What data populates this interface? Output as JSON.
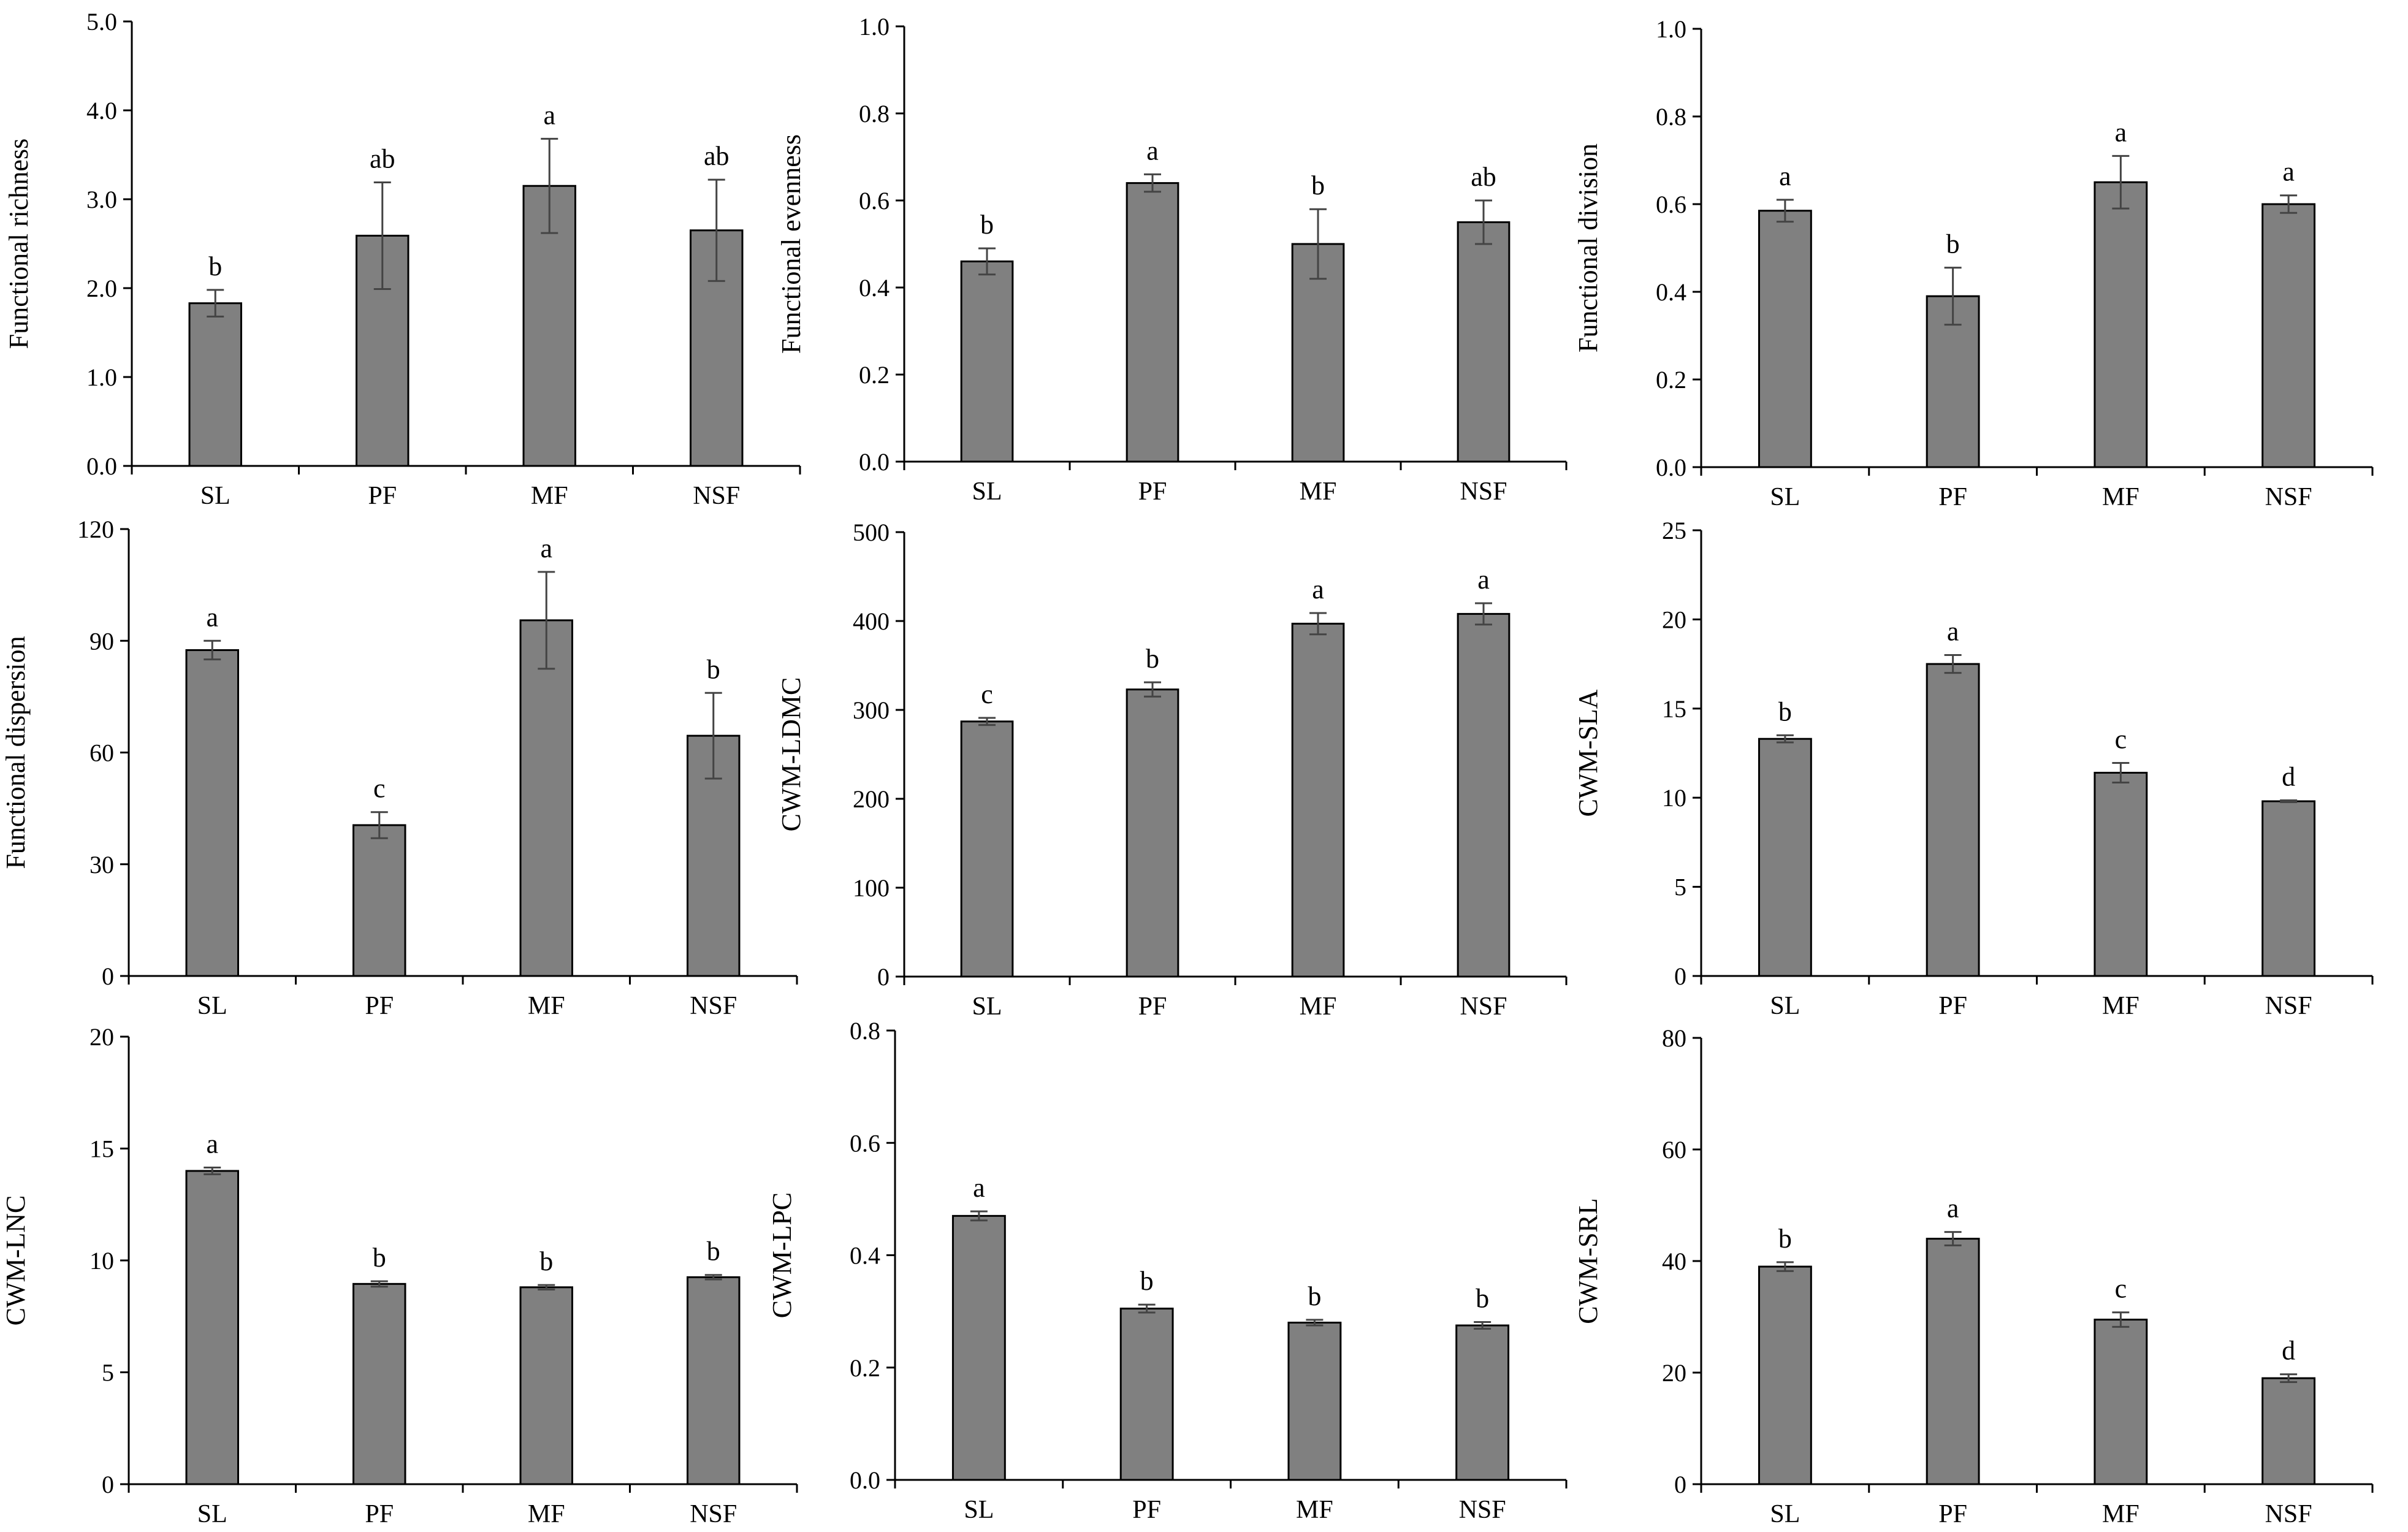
{
  "colors": {
    "bar": "#808080",
    "bar_stroke": "#000000",
    "axis": "#000000",
    "error_bar": "#444444"
  },
  "chart_data": [
    {
      "type": "bar",
      "ylabel": "Functional richness",
      "categories": [
        "SL",
        "PF",
        "MF",
        "NSF"
      ],
      "values": [
        1.83,
        2.59,
        3.15,
        2.65
      ],
      "errors": [
        0.15,
        0.6,
        0.53,
        0.57
      ],
      "letters": [
        "b",
        "ab",
        "a",
        "ab"
      ],
      "ylim": [
        0,
        5
      ],
      "yticks": [
        0,
        1,
        2,
        3,
        4,
        5
      ],
      "ytick_labels": [
        "0.0",
        "1.0",
        "2.0",
        "3.0",
        "4.0",
        "5.0"
      ]
    },
    {
      "type": "bar",
      "ylabel": "Functional evenness",
      "categories": [
        "SL",
        "PF",
        "MF",
        "NSF"
      ],
      "values": [
        0.46,
        0.64,
        0.5,
        0.55
      ],
      "errors": [
        0.03,
        0.02,
        0.08,
        0.05
      ],
      "letters": [
        "b",
        "a",
        "b",
        "ab"
      ],
      "ylim": [
        0,
        1
      ],
      "yticks": [
        0,
        0.2,
        0.4,
        0.6,
        0.8,
        1.0
      ],
      "ytick_labels": [
        "0.0",
        "0.2",
        "0.4",
        "0.6",
        "0.8",
        "1.0"
      ]
    },
    {
      "type": "bar",
      "ylabel": "Functional division",
      "categories": [
        "SL",
        "PF",
        "MF",
        "NSF"
      ],
      "values": [
        0.585,
        0.39,
        0.65,
        0.6
      ],
      "errors": [
        0.025,
        0.065,
        0.06,
        0.02
      ],
      "letters": [
        "a",
        "b",
        "a",
        "a"
      ],
      "ylim": [
        0,
        1
      ],
      "yticks": [
        0,
        0.2,
        0.4,
        0.6,
        0.8,
        1.0
      ],
      "ytick_labels": [
        "0.0",
        "0.2",
        "0.4",
        "0.6",
        "0.8",
        "1.0"
      ]
    },
    {
      "type": "bar",
      "ylabel": "Functional dispersion",
      "categories": [
        "SL",
        "PF",
        "MF",
        "NSF"
      ],
      "values": [
        87.5,
        40.5,
        95.5,
        64.5
      ],
      "errors": [
        2.5,
        3.5,
        13.0,
        11.5
      ],
      "letters": [
        "a",
        "c",
        "a",
        "b"
      ],
      "ylim": [
        0,
        120
      ],
      "yticks": [
        0,
        30,
        60,
        90,
        120
      ],
      "ytick_labels": [
        "0",
        "30",
        "60",
        "90",
        "120"
      ]
    },
    {
      "type": "bar",
      "ylabel": "CWM-LDMC",
      "categories": [
        "SL",
        "PF",
        "MF",
        "NSF"
      ],
      "values": [
        287,
        323,
        397,
        408
      ],
      "errors": [
        4,
        8,
        12,
        12
      ],
      "letters": [
        "c",
        "b",
        "a",
        "a"
      ],
      "ylim": [
        0,
        500
      ],
      "yticks": [
        0,
        100,
        200,
        300,
        400,
        500
      ],
      "ytick_labels": [
        "0",
        "100",
        "200",
        "300",
        "400",
        "500"
      ]
    },
    {
      "type": "bar",
      "ylabel": "CWM-SLA",
      "categories": [
        "SL",
        "PF",
        "MF",
        "NSF"
      ],
      "values": [
        13.3,
        17.5,
        11.4,
        9.8
      ],
      "errors": [
        0.2,
        0.5,
        0.55,
        0.05
      ],
      "letters": [
        "b",
        "a",
        "c",
        "d"
      ],
      "ylim": [
        0,
        25
      ],
      "yticks": [
        0,
        5,
        10,
        15,
        20,
        25
      ],
      "ytick_labels": [
        "0",
        "5",
        "10",
        "15",
        "20",
        "25"
      ]
    },
    {
      "type": "bar",
      "ylabel": "CWM-LNC",
      "categories": [
        "SL",
        "PF",
        "MF",
        "NSF"
      ],
      "values": [
        14.0,
        8.95,
        8.8,
        9.25
      ],
      "errors": [
        0.15,
        0.12,
        0.1,
        0.1
      ],
      "letters": [
        "a",
        "b",
        "b",
        "b"
      ],
      "ylim": [
        0,
        20
      ],
      "yticks": [
        0,
        5,
        10,
        15,
        20
      ],
      "ytick_labels": [
        "0",
        "5",
        "10",
        "15",
        "20"
      ]
    },
    {
      "type": "bar",
      "ylabel": "CWM-LPC",
      "categories": [
        "SL",
        "PF",
        "MF",
        "NSF"
      ],
      "values": [
        0.47,
        0.305,
        0.28,
        0.275
      ],
      "errors": [
        0.008,
        0.007,
        0.005,
        0.006
      ],
      "letters": [
        "a",
        "b",
        "b",
        "b"
      ],
      "ylim": [
        0,
        0.8
      ],
      "yticks": [
        0,
        0.2,
        0.4,
        0.6,
        0.8
      ],
      "ytick_labels": [
        "0.0",
        "0.2",
        "0.4",
        "0.6",
        "0.8"
      ]
    },
    {
      "type": "bar",
      "ylabel": "CWM-SRL",
      "categories": [
        "SL",
        "PF",
        "MF",
        "NSF"
      ],
      "values": [
        39.0,
        44.0,
        29.5,
        19.0
      ],
      "errors": [
        0.8,
        1.2,
        1.3,
        0.7
      ],
      "letters": [
        "b",
        "a",
        "c",
        "d"
      ],
      "ylim": [
        0,
        80
      ],
      "yticks": [
        0,
        20,
        40,
        60,
        80
      ],
      "ytick_labels": [
        "0",
        "20",
        "40",
        "60",
        "80"
      ]
    }
  ]
}
